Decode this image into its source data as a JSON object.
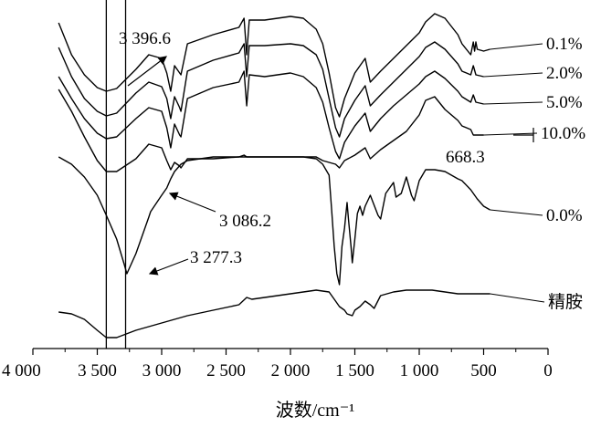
{
  "chart_data": {
    "type": "line",
    "title": "",
    "xlabel": "波数/cm⁻¹",
    "ylabel": "",
    "x_reversed": true,
    "xlim": [
      4000,
      0
    ],
    "xticks": [
      {
        "value": 4000,
        "label": "4 000"
      },
      {
        "value": 3500,
        "label": "3 500"
      },
      {
        "value": 3000,
        "label": "3 000"
      },
      {
        "value": 2500,
        "label": "2 500"
      },
      {
        "value": 2000,
        "label": "2 000"
      },
      {
        "value": 1500,
        "label": "1 500"
      },
      {
        "value": 1000,
        "label": "1 000"
      },
      {
        "value": 500,
        "label": "500"
      },
      {
        "value": 0,
        "label": "0"
      }
    ],
    "reference_lines": [
      3430,
      3280
    ],
    "series": [
      {
        "name": "0.1%",
        "color": "#000000",
        "points": [
          [
            3800,
            25
          ],
          [
            3700,
            60
          ],
          [
            3600,
            82
          ],
          [
            3500,
            96
          ],
          [
            3430,
            100
          ],
          [
            3350,
            97
          ],
          [
            3200,
            76
          ],
          [
            3100,
            60
          ],
          [
            3000,
            64
          ],
          [
            2960,
            80
          ],
          [
            2930,
            100
          ],
          [
            2900,
            72
          ],
          [
            2860,
            80
          ],
          [
            2850,
            82
          ],
          [
            2800,
            48
          ],
          [
            2600,
            38
          ],
          [
            2400,
            30
          ],
          [
            2360,
            20
          ],
          [
            2340,
            60
          ],
          [
            2320,
            22
          ],
          [
            2200,
            22
          ],
          [
            2000,
            18
          ],
          [
            1900,
            20
          ],
          [
            1800,
            32
          ],
          [
            1750,
            48
          ],
          [
            1700,
            80
          ],
          [
            1650,
            118
          ],
          [
            1620,
            128
          ],
          [
            1580,
            108
          ],
          [
            1500,
            80
          ],
          [
            1420,
            64
          ],
          [
            1380,
            90
          ],
          [
            1300,
            78
          ],
          [
            1200,
            64
          ],
          [
            1100,
            50
          ],
          [
            1000,
            36
          ],
          [
            950,
            24
          ],
          [
            880,
            15
          ],
          [
            800,
            20
          ],
          [
            700,
            38
          ],
          [
            668,
            48
          ],
          [
            600,
            60
          ],
          [
            580,
            46
          ],
          [
            570,
            56
          ],
          [
            560,
            46
          ],
          [
            550,
            54
          ],
          [
            500,
            56
          ],
          [
            450,
            54
          ]
        ]
      },
      {
        "name": "2.0%",
        "color": "#000000",
        "points": [
          [
            3800,
            52
          ],
          [
            3700,
            84
          ],
          [
            3600,
            108
          ],
          [
            3500,
            122
          ],
          [
            3430,
            127
          ],
          [
            3350,
            124
          ],
          [
            3200,
            102
          ],
          [
            3100,
            90
          ],
          [
            3000,
            95
          ],
          [
            2960,
            108
          ],
          [
            2930,
            130
          ],
          [
            2900,
            106
          ],
          [
            2860,
            118
          ],
          [
            2850,
            122
          ],
          [
            2800,
            78
          ],
          [
            2600,
            66
          ],
          [
            2400,
            58
          ],
          [
            2360,
            48
          ],
          [
            2340,
            84
          ],
          [
            2320,
            50
          ],
          [
            2200,
            50
          ],
          [
            2000,
            48
          ],
          [
            1900,
            50
          ],
          [
            1800,
            60
          ],
          [
            1750,
            76
          ],
          [
            1700,
            108
          ],
          [
            1650,
            140
          ],
          [
            1620,
            150
          ],
          [
            1580,
            130
          ],
          [
            1500,
            110
          ],
          [
            1420,
            94
          ],
          [
            1380,
            116
          ],
          [
            1300,
            104
          ],
          [
            1200,
            90
          ],
          [
            1100,
            76
          ],
          [
            1000,
            62
          ],
          [
            950,
            52
          ],
          [
            880,
            46
          ],
          [
            800,
            54
          ],
          [
            700,
            70
          ],
          [
            668,
            78
          ],
          [
            600,
            82
          ],
          [
            580,
            72
          ],
          [
            560,
            82
          ],
          [
            500,
            84
          ]
        ]
      },
      {
        "name": "5.0%",
        "color": "#000000",
        "points": [
          [
            3800,
            84
          ],
          [
            3700,
            108
          ],
          [
            3600,
            130
          ],
          [
            3500,
            146
          ],
          [
            3430,
            152
          ],
          [
            3350,
            150
          ],
          [
            3200,
            130
          ],
          [
            3100,
            118
          ],
          [
            3000,
            122
          ],
          [
            2960,
            140
          ],
          [
            2930,
            162
          ],
          [
            2900,
            136
          ],
          [
            2860,
            148
          ],
          [
            2850,
            150
          ],
          [
            2800,
            108
          ],
          [
            2600,
            96
          ],
          [
            2400,
            90
          ],
          [
            2360,
            78
          ],
          [
            2340,
            116
          ],
          [
            2320,
            82
          ],
          [
            2200,
            84
          ],
          [
            2000,
            80
          ],
          [
            1900,
            84
          ],
          [
            1800,
            96
          ],
          [
            1750,
            112
          ],
          [
            1700,
            140
          ],
          [
            1650,
            166
          ],
          [
            1620,
            174
          ],
          [
            1580,
            156
          ],
          [
            1500,
            138
          ],
          [
            1420,
            124
          ],
          [
            1380,
            144
          ],
          [
            1300,
            130
          ],
          [
            1200,
            116
          ],
          [
            1100,
            104
          ],
          [
            1000,
            92
          ],
          [
            950,
            84
          ],
          [
            880,
            78
          ],
          [
            800,
            86
          ],
          [
            700,
            100
          ],
          [
            668,
            106
          ],
          [
            600,
            112
          ],
          [
            580,
            104
          ],
          [
            560,
            112
          ],
          [
            500,
            114
          ]
        ]
      },
      {
        "name": "10.0%",
        "color": "#000000",
        "points": [
          [
            3800,
            98
          ],
          [
            3700,
            122
          ],
          [
            3600,
            150
          ],
          [
            3500,
            176
          ],
          [
            3430,
            188
          ],
          [
            3350,
            188
          ],
          [
            3200,
            174
          ],
          [
            3100,
            158
          ],
          [
            3000,
            162
          ],
          [
            2960,
            176
          ],
          [
            2930,
            186
          ],
          [
            2900,
            178
          ],
          [
            2860,
            182
          ],
          [
            2850,
            184
          ],
          [
            2800,
            174
          ],
          [
            2600,
            174
          ],
          [
            2400,
            172
          ],
          [
            2360,
            170
          ],
          [
            2340,
            172
          ],
          [
            2200,
            172
          ],
          [
            2000,
            172
          ],
          [
            1900,
            172
          ],
          [
            1800,
            172
          ],
          [
            1750,
            176
          ],
          [
            1700,
            178
          ],
          [
            1650,
            180
          ],
          [
            1620,
            184
          ],
          [
            1580,
            176
          ],
          [
            1500,
            170
          ],
          [
            1420,
            162
          ],
          [
            1380,
            174
          ],
          [
            1300,
            164
          ],
          [
            1200,
            154
          ],
          [
            1100,
            144
          ],
          [
            1000,
            126
          ],
          [
            950,
            110
          ],
          [
            880,
            106
          ],
          [
            800,
            120
          ],
          [
            700,
            132
          ],
          [
            668,
            138
          ],
          [
            600,
            142
          ],
          [
            580,
            148
          ],
          [
            500,
            148
          ]
        ]
      },
      {
        "name": "0.0%",
        "color": "#000000",
        "points": [
          [
            3800,
            172
          ],
          [
            3700,
            180
          ],
          [
            3600,
            194
          ],
          [
            3500,
            214
          ],
          [
            3430,
            236
          ],
          [
            3350,
            262
          ],
          [
            3290,
            290
          ],
          [
            3270,
            300
          ],
          [
            3200,
            278
          ],
          [
            3100,
            238
          ],
          [
            3086,
            232
          ],
          [
            3000,
            214
          ],
          [
            2960,
            206
          ],
          [
            2930,
            196
          ],
          [
            2900,
            188
          ],
          [
            2850,
            180
          ],
          [
            2800,
            176
          ],
          [
            2600,
            172
          ],
          [
            2400,
            172
          ],
          [
            2200,
            172
          ],
          [
            2000,
            172
          ],
          [
            1900,
            172
          ],
          [
            1800,
            174
          ],
          [
            1750,
            180
          ],
          [
            1700,
            192
          ],
          [
            1680,
            230
          ],
          [
            1660,
            270
          ],
          [
            1640,
            300
          ],
          [
            1620,
            312
          ],
          [
            1600,
            270
          ],
          [
            1580,
            250
          ],
          [
            1560,
            222
          ],
          [
            1550,
            240
          ],
          [
            1530,
            270
          ],
          [
            1520,
            288
          ],
          [
            1500,
            262
          ],
          [
            1480,
            234
          ],
          [
            1460,
            226
          ],
          [
            1440,
            236
          ],
          [
            1420,
            226
          ],
          [
            1380,
            214
          ],
          [
            1320,
            236
          ],
          [
            1300,
            240
          ],
          [
            1260,
            212
          ],
          [
            1200,
            200
          ],
          [
            1180,
            216
          ],
          [
            1140,
            212
          ],
          [
            1100,
            194
          ],
          [
            1060,
            214
          ],
          [
            1040,
            220
          ],
          [
            1000,
            198
          ],
          [
            950,
            186
          ],
          [
            880,
            186
          ],
          [
            800,
            188
          ],
          [
            700,
            196
          ],
          [
            668,
            198
          ],
          [
            600,
            208
          ],
          [
            550,
            218
          ],
          [
            500,
            226
          ],
          [
            450,
            230
          ]
        ]
      },
      {
        "name": "精胺",
        "color": "#000000",
        "points": [
          [
            3800,
            342
          ],
          [
            3700,
            344
          ],
          [
            3600,
            350
          ],
          [
            3500,
            362
          ],
          [
            3430,
            370
          ],
          [
            3350,
            370
          ],
          [
            3200,
            362
          ],
          [
            3000,
            354
          ],
          [
            2800,
            346
          ],
          [
            2600,
            340
          ],
          [
            2400,
            334
          ],
          [
            2340,
            326
          ],
          [
            2300,
            328
          ],
          [
            2200,
            326
          ],
          [
            2000,
            322
          ],
          [
            1800,
            318
          ],
          [
            1700,
            320
          ],
          [
            1650,
            330
          ],
          [
            1620,
            336
          ],
          [
            1580,
            340
          ],
          [
            1560,
            344
          ],
          [
            1520,
            346
          ],
          [
            1500,
            340
          ],
          [
            1460,
            336
          ],
          [
            1420,
            330
          ],
          [
            1380,
            334
          ],
          [
            1350,
            338
          ],
          [
            1300,
            324
          ],
          [
            1200,
            320
          ],
          [
            1100,
            318
          ],
          [
            1000,
            318
          ],
          [
            900,
            318
          ],
          [
            800,
            320
          ],
          [
            700,
            322
          ],
          [
            600,
            322
          ],
          [
            500,
            322
          ],
          [
            450,
            322
          ]
        ]
      }
    ],
    "annotations": [
      {
        "label": "3 396.6",
        "x": 3396.6
      },
      {
        "label": "3 086.2",
        "x": 3086.2
      },
      {
        "label": "3 277.3",
        "x": 3277.3
      },
      {
        "label": "668.3",
        "x": 668.3
      }
    ]
  }
}
